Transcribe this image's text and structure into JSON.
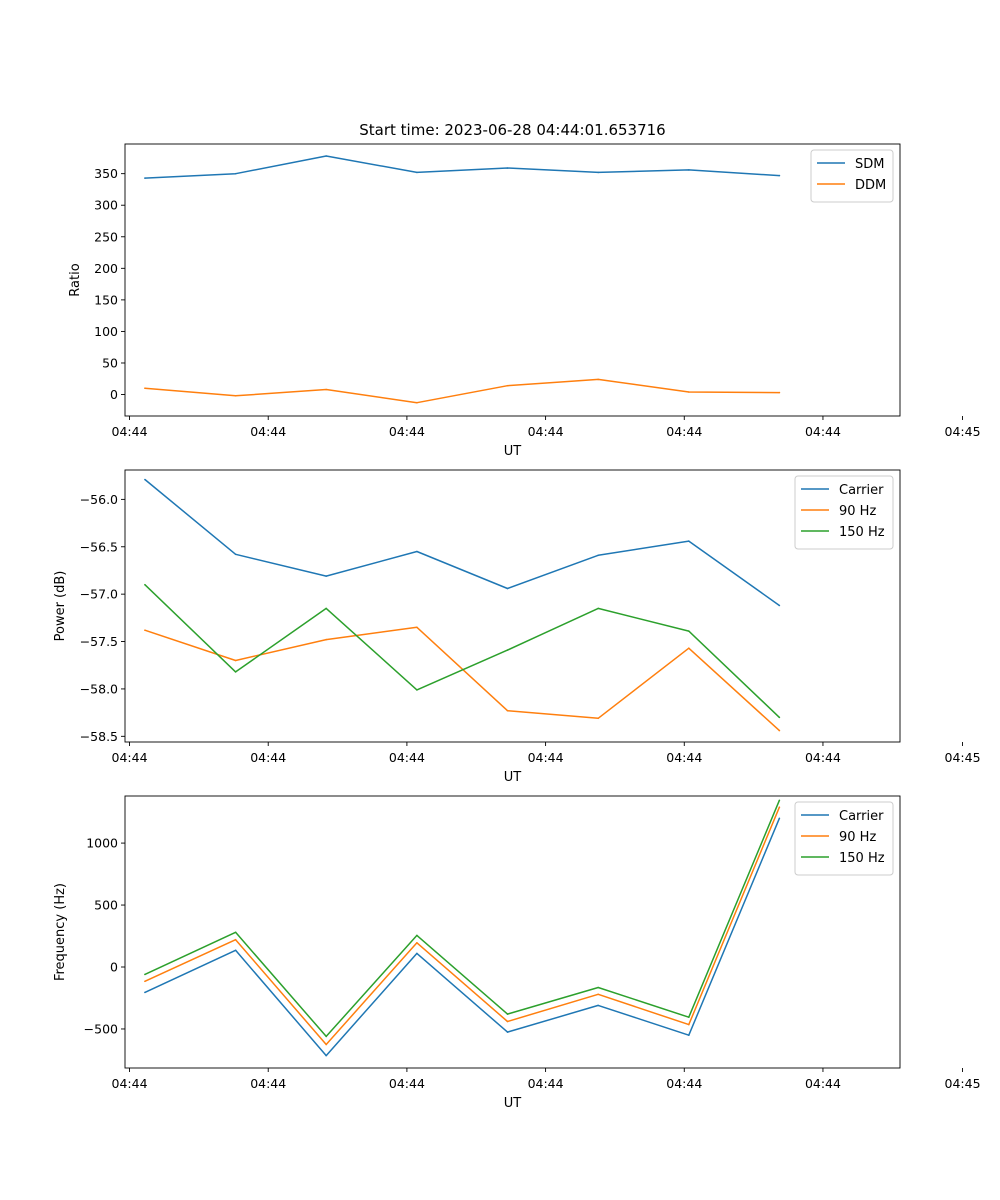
{
  "title": "Start time: 2023-06-28 04:44:01.653716",
  "chart_data": [
    {
      "type": "line",
      "xlabel": "UT",
      "ylabel": "Ratio",
      "x": [
        1,
        2,
        3,
        4,
        5,
        6,
        7,
        8
      ],
      "xlim": [
        0.78,
        9.33
      ],
      "xticks": [
        0.83,
        2.36,
        3.89,
        5.42,
        6.95,
        8.48,
        10.02
      ],
      "xtick_labels": [
        "04:44",
        "04:44",
        "04:44",
        "04:44",
        "04:44",
        "04:44",
        "04:45"
      ],
      "ylim": [
        -34,
        397
      ],
      "yticks": [
        0,
        50,
        100,
        150,
        200,
        250,
        300,
        350
      ],
      "ytick_labels": [
        "0",
        "50",
        "100",
        "150",
        "200",
        "250",
        "300",
        "350"
      ],
      "legend": "top-right",
      "series": [
        {
          "name": "SDM",
          "color": "#1f77b4",
          "values": [
            343,
            350,
            378,
            352,
            359,
            352,
            356,
            347
          ]
        },
        {
          "name": "DDM",
          "color": "#ff7f0e",
          "values": [
            10,
            -2,
            8,
            -13,
            14,
            24,
            4,
            3
          ]
        }
      ]
    },
    {
      "type": "line",
      "xlabel": "UT",
      "ylabel": "Power (dB)",
      "x": [
        1,
        2,
        3,
        4,
        5,
        6,
        7,
        8
      ],
      "xlim": [
        0.78,
        9.33
      ],
      "xticks": [
        0.83,
        2.36,
        3.89,
        5.42,
        6.95,
        8.48,
        10.02
      ],
      "xtick_labels": [
        "04:44",
        "04:44",
        "04:44",
        "04:44",
        "04:44",
        "04:44",
        "04:45"
      ],
      "ylim": [
        -58.56,
        -55.69
      ],
      "yticks": [
        -58.5,
        -58.0,
        -57.5,
        -57.0,
        -56.5,
        -56.0
      ],
      "ytick_labels": [
        "−58.5",
        "−58.0",
        "−57.5",
        "−57.0",
        "−56.5",
        "−56.0"
      ],
      "legend": "top-right",
      "series": [
        {
          "name": "Carrier",
          "color": "#1f77b4",
          "values": [
            -55.79,
            -56.58,
            -56.81,
            -56.55,
            -56.94,
            -56.59,
            -56.44,
            -57.12
          ]
        },
        {
          "name": "90 Hz",
          "color": "#ff7f0e",
          "values": [
            -57.38,
            -57.7,
            -57.48,
            -57.35,
            -58.23,
            -58.31,
            -57.57,
            -58.44
          ]
        },
        {
          "name": "150 Hz",
          "color": "#2ca02c",
          "values": [
            -56.9,
            -57.82,
            -57.15,
            -58.01,
            -57.59,
            -57.15,
            -57.39,
            -58.3
          ]
        }
      ]
    },
    {
      "type": "line",
      "xlabel": "UT",
      "ylabel": "Frequency (Hz)",
      "x": [
        1,
        2,
        3,
        4,
        5,
        6,
        7,
        8
      ],
      "xlim": [
        0.78,
        9.33
      ],
      "xticks": [
        0.83,
        2.36,
        3.89,
        5.42,
        6.95,
        8.48,
        10.02
      ],
      "xtick_labels": [
        "04:44",
        "04:44",
        "04:44",
        "04:44",
        "04:44",
        "04:44",
        "04:45"
      ],
      "ylim": [
        -815,
        1380
      ],
      "yticks": [
        -500,
        0,
        500,
        1000
      ],
      "ytick_labels": [
        "−500",
        "0",
        "500",
        "1000"
      ],
      "legend": "top-right",
      "series": [
        {
          "name": "Carrier",
          "color": "#1f77b4",
          "values": [
            -205,
            135,
            -715,
            110,
            -525,
            -310,
            -550,
            1200
          ]
        },
        {
          "name": "90 Hz",
          "color": "#ff7f0e",
          "values": [
            -115,
            220,
            -625,
            195,
            -440,
            -220,
            -465,
            1290
          ]
        },
        {
          "name": "150 Hz",
          "color": "#2ca02c",
          "values": [
            -60,
            280,
            -560,
            255,
            -380,
            -165,
            -405,
            1345
          ]
        }
      ]
    }
  ]
}
